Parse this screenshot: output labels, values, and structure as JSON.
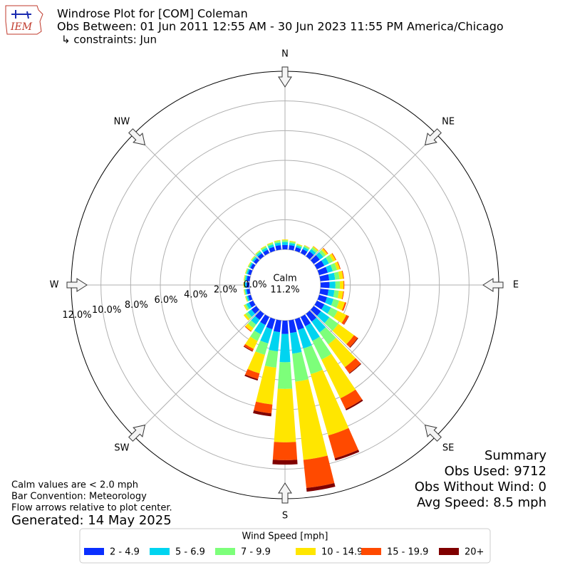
{
  "chart_data": {
    "type": "windrose",
    "logo_text": "IEM",
    "title": "Windrose Plot for [COM] Coleman",
    "subtitle": "Obs Between: 01 Jun 2011 12:55 AM - 30 Jun 2023 11:55 PM America/Chicago",
    "constraint": "↳ constraints: Jun",
    "compass": [
      "N",
      "NE",
      "E",
      "SE",
      "S",
      "SW",
      "W",
      "NW"
    ],
    "x": [
      0,
      10,
      20,
      30,
      40,
      50,
      60,
      70,
      80,
      90,
      100,
      110,
      120,
      130,
      140,
      150,
      160,
      170,
      180,
      190,
      200,
      210,
      220,
      230,
      240,
      250,
      260,
      270,
      280,
      290,
      300,
      310,
      320,
      330,
      340,
      350
    ],
    "rlim": [
      0,
      12
    ],
    "rticks": [
      {
        "value": 0,
        "label": "0.0%"
      },
      {
        "value": 2,
        "label": "2.0%"
      },
      {
        "value": 4,
        "label": "4.0%"
      },
      {
        "value": 6,
        "label": "6.0%"
      },
      {
        "value": 8,
        "label": "8.0%"
      },
      {
        "value": 10,
        "label": "10.0%"
      },
      {
        "value": 12,
        "label": "12.0%"
      }
    ],
    "grid": true,
    "calm": {
      "label": "Calm",
      "value": 11.2,
      "value_label": "11.2%"
    },
    "legend_title": "Wind Speed [mph]",
    "series": [
      {
        "name": "2 - 4.9",
        "color": "#0a2fff",
        "values": [
          0.3,
          0.3,
          0.25,
          0.3,
          0.4,
          0.5,
          0.55,
          0.6,
          0.6,
          0.6,
          0.55,
          0.55,
          0.55,
          0.6,
          0.65,
          0.7,
          0.75,
          0.85,
          0.9,
          0.8,
          0.7,
          0.6,
          0.5,
          0.4,
          0.3,
          0.2,
          0.2,
          0.2,
          0.2,
          0.2,
          0.2,
          0.22,
          0.25,
          0.25,
          0.28,
          0.3
        ]
      },
      {
        "name": "5 - 6.9",
        "color": "#00d4f0",
        "values": [
          0.2,
          0.15,
          0.13,
          0.15,
          0.2,
          0.3,
          0.35,
          0.35,
          0.4,
          0.4,
          0.4,
          0.45,
          0.5,
          0.7,
          0.9,
          1.1,
          1.3,
          1.4,
          1.9,
          1.3,
          1.0,
          0.7,
          0.4,
          0.3,
          0.2,
          0.1,
          0.1,
          0.1,
          0.1,
          0.1,
          0.1,
          0.12,
          0.13,
          0.15,
          0.16,
          0.18
        ]
      },
      {
        "name": "7 - 9.9",
        "color": "#7dff7a",
        "values": [
          0.12,
          0.1,
          0.08,
          0.1,
          0.15,
          0.2,
          0.3,
          0.3,
          0.3,
          0.3,
          0.3,
          0.4,
          0.5,
          0.75,
          1.0,
          1.4,
          1.8,
          1.9,
          1.8,
          1.1,
          0.8,
          0.5,
          0.3,
          0.2,
          0.12,
          0.06,
          0.06,
          0.06,
          0.06,
          0.06,
          0.06,
          0.07,
          0.08,
          0.1,
          0.11,
          0.12
        ]
      },
      {
        "name": "10 - 14.9",
        "color": "#ffe600",
        "values": [
          0.05,
          0.05,
          0.04,
          0.04,
          0.08,
          0.15,
          0.2,
          0.2,
          0.25,
          0.25,
          0.3,
          0.4,
          0.65,
          1.3,
          1.9,
          2.9,
          4.3,
          5.3,
          3.6,
          2.5,
          1.3,
          0.6,
          0.25,
          0.15,
          0.08,
          0.04,
          0.04,
          0.04,
          0.04,
          0.04,
          0.04,
          0.04,
          0.04,
          0.05,
          0.05,
          0.05
        ]
      },
      {
        "name": "15 - 19.9",
        "color": "#ff4a00",
        "values": [
          0,
          0,
          0,
          0.01,
          0.02,
          0.05,
          0.05,
          0.05,
          0.05,
          0.05,
          0.05,
          0.1,
          0.18,
          0.3,
          0.5,
          0.8,
          1.6,
          1.9,
          1.2,
          0.6,
          0.4,
          0.15,
          0.05,
          0,
          0,
          0,
          0,
          0,
          0,
          0,
          0,
          0,
          0,
          0,
          0,
          0
        ]
      },
      {
        "name": "20+",
        "color": "#800000",
        "values": [
          0,
          0,
          0,
          0,
          0,
          0,
          0,
          0,
          0,
          0,
          0,
          0,
          0.02,
          0.05,
          0.05,
          0.1,
          0.15,
          0.25,
          0.3,
          0.2,
          0.1,
          0.05,
          0,
          0,
          0,
          0,
          0,
          0,
          0,
          0,
          0,
          0,
          0,
          0,
          0,
          0
        ]
      }
    ],
    "notes": [
      "Calm values are < 2.0 mph",
      "Bar Convention: Meteorology",
      "Flow arrows relative to plot center."
    ],
    "generated": "Generated: 14 May 2025",
    "summary": [
      "Summary",
      "Obs Used: 9712",
      "Obs Without Wind: 0",
      "Avg Speed: 8.5 mph"
    ]
  }
}
